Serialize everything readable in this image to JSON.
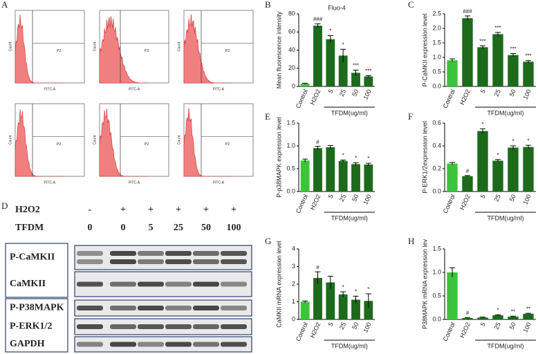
{
  "panel_labels": [
    "A",
    "B",
    "C",
    "D",
    "E",
    "F",
    "G",
    "H"
  ],
  "flow_cytometry": {
    "panels": [
      {
        "gate": "P2",
        "x_label": "FITC-A",
        "y_label": "Count"
      },
      {
        "gate": "P2",
        "x_label": "FITC-A",
        "y_label": "Count"
      },
      {
        "gate": "P2",
        "x_label": "FITC-A",
        "y_label": "Count"
      },
      {
        "gate": "P2",
        "x_label": "FITC-A",
        "y_label": "Count"
      },
      {
        "gate": "P2",
        "x_label": "FITC-A",
        "y_label": "Count"
      },
      {
        "gate": "P2",
        "x_label": "FITC-A",
        "y_label": "Count"
      }
    ]
  },
  "western_blot": {
    "treatments": [
      {
        "name": "H2O2",
        "levels": [
          "-",
          "+",
          "+",
          "+",
          "+",
          "+"
        ]
      },
      {
        "name": "TFDM",
        "levels": [
          "0",
          "0",
          "5",
          "25",
          "50",
          "100"
        ]
      }
    ],
    "groups": [
      [
        "P-CaMKII",
        "CaMKII"
      ],
      [
        "P-P38MAPK",
        "P-ERK1/2",
        "GAPDH"
      ]
    ]
  },
  "chart_data": [
    {
      "type": "bar",
      "panel": "B",
      "title": "Fluo-4",
      "y_label": "Mean fluorescence intensity",
      "x_label": "TFDM(ug/ml)",
      "categories": [
        "Control",
        "H2O2",
        "5",
        "25",
        "50",
        "100"
      ],
      "values": [
        3,
        67,
        52,
        34,
        15,
        11
      ],
      "errors": [
        0.5,
        2,
        4,
        7,
        3,
        1
      ],
      "annotations": [
        null,
        "###",
        "*",
        "*",
        "***",
        "***"
      ],
      "colors": [
        "#3cc43c",
        "#1d6a1d",
        "#1d6a1d",
        "#1d6a1d",
        "#1d6a1d",
        "#1d6a1d"
      ],
      "ylim": [
        0,
        80
      ],
      "yticks": [
        0,
        20,
        40,
        60,
        80
      ]
    },
    {
      "type": "bar",
      "panel": "C",
      "y_label": "P-CaMKII expression level",
      "x_label": "TFDM(ug/ml)",
      "categories": [
        "Control",
        "H2O2",
        "5",
        "25",
        "50",
        "100"
      ],
      "values": [
        0.9,
        2.35,
        1.35,
        1.8,
        1.08,
        0.85
      ],
      "errors": [
        0.05,
        0.08,
        0.05,
        0.06,
        0.05,
        0.04
      ],
      "annotations": [
        null,
        "###",
        "***",
        "***",
        "***",
        "***"
      ],
      "colors": [
        "#3cc43c",
        "#1d6a1d",
        "#1d6a1d",
        "#1d6a1d",
        "#1d6a1d",
        "#1d6a1d"
      ],
      "ylim": [
        0,
        2.5
      ],
      "yticks": [
        {
          "value": 0,
          "label": "0.0"
        },
        {
          "value": 0.5,
          "label": "0.5"
        },
        {
          "value": 1,
          "label": "1.0"
        },
        {
          "value": 1.5,
          "label": "1.5"
        },
        {
          "value": 2,
          "label": "2.0"
        },
        {
          "value": 2.5,
          "label": "2.5"
        }
      ]
    },
    {
      "type": "bar",
      "panel": "E",
      "y_label": "P-p38MAPK expression level",
      "x_label": "TFDM(ug/ml)",
      "categories": [
        "Control",
        "H2O2",
        "5",
        "25",
        "50",
        "100"
      ],
      "values": [
        0.68,
        0.95,
        0.97,
        0.67,
        0.6,
        0.59
      ],
      "errors": [
        0.03,
        0.04,
        0.04,
        0.02,
        0.03,
        0.03
      ],
      "annotations": [
        null,
        "#",
        null,
        "*",
        "*",
        "*"
      ],
      "colors": [
        "#3cc43c",
        "#1d6a1d",
        "#1d6a1d",
        "#1d6a1d",
        "#1d6a1d",
        "#1d6a1d"
      ],
      "ylim": [
        0,
        1.5
      ],
      "yticks": [
        {
          "value": 0,
          "label": "0.0"
        },
        {
          "value": 0.5,
          "label": "0.5"
        },
        {
          "value": 1,
          "label": "1.0"
        },
        {
          "value": 1.5,
          "label": "1.5"
        }
      ]
    },
    {
      "type": "bar",
      "panel": "F",
      "y_label": "P-ERK1/2expression level",
      "x_label": "TFDM(ug/ml)",
      "categories": [
        "Control",
        "H2O2",
        "5",
        "25",
        "50",
        "100"
      ],
      "values": [
        0.245,
        0.135,
        0.53,
        0.27,
        0.385,
        0.39
      ],
      "errors": [
        0.01,
        0.005,
        0.02,
        0.01,
        0.015,
        0.015
      ],
      "annotations": [
        null,
        "#",
        "*",
        "*",
        "*",
        "*"
      ],
      "colors": [
        "#3cc43c",
        "#1d6a1d",
        "#1d6a1d",
        "#1d6a1d",
        "#1d6a1d",
        "#1d6a1d"
      ],
      "ylim": [
        0,
        0.6
      ],
      "yticks": [
        {
          "value": 0,
          "label": "0.0"
        },
        0.2,
        0.4,
        0.6
      ]
    },
    {
      "type": "bar",
      "panel": "G",
      "y_label": "CaMKII mRNA expression level",
      "x_label": "TFDM(ug/ml)",
      "categories": [
        "Control",
        "H2O2",
        "5",
        "25",
        "50",
        "100"
      ],
      "values": [
        1.0,
        2.35,
        2.1,
        1.42,
        1.12,
        1.05
      ],
      "errors": [
        0.05,
        0.35,
        0.35,
        0.15,
        0.2,
        0.4
      ],
      "annotations": [
        null,
        "#",
        null,
        "*",
        "*",
        "*"
      ],
      "colors": [
        "#3cc43c",
        "#1d6a1d",
        "#1d6a1d",
        "#1d6a1d",
        "#1d6a1d",
        "#1d6a1d"
      ],
      "ylim": [
        0,
        4
      ],
      "yticks": [
        0,
        1,
        2,
        3,
        4
      ]
    },
    {
      "type": "bar",
      "panel": "H",
      "y_label": "P38MAPK mRNA expression lev",
      "x_label": "TFDM(ug/ml)",
      "categories": [
        "Control",
        "H2O2",
        "5",
        "25",
        "50",
        "100"
      ],
      "values": [
        1.0,
        0.03,
        0.04,
        0.09,
        0.06,
        0.12
      ],
      "errors": [
        0.1,
        0.01,
        0.01,
        0.01,
        0.01,
        0.01
      ],
      "annotations": [
        null,
        "#",
        null,
        "*",
        "**",
        "**"
      ],
      "colors": [
        "#3cc43c",
        "#1d6a1d",
        "#1d6a1d",
        "#1d6a1d",
        "#1d6a1d",
        "#1d6a1d"
      ],
      "ylim": [
        0,
        1.5
      ],
      "yticks": [
        {
          "value": 0,
          "label": "0.0"
        },
        {
          "value": 0.5,
          "label": "0.5"
        },
        {
          "value": 1,
          "label": "1.0"
        },
        {
          "value": 1.5,
          "label": "1.5"
        }
      ]
    }
  ]
}
